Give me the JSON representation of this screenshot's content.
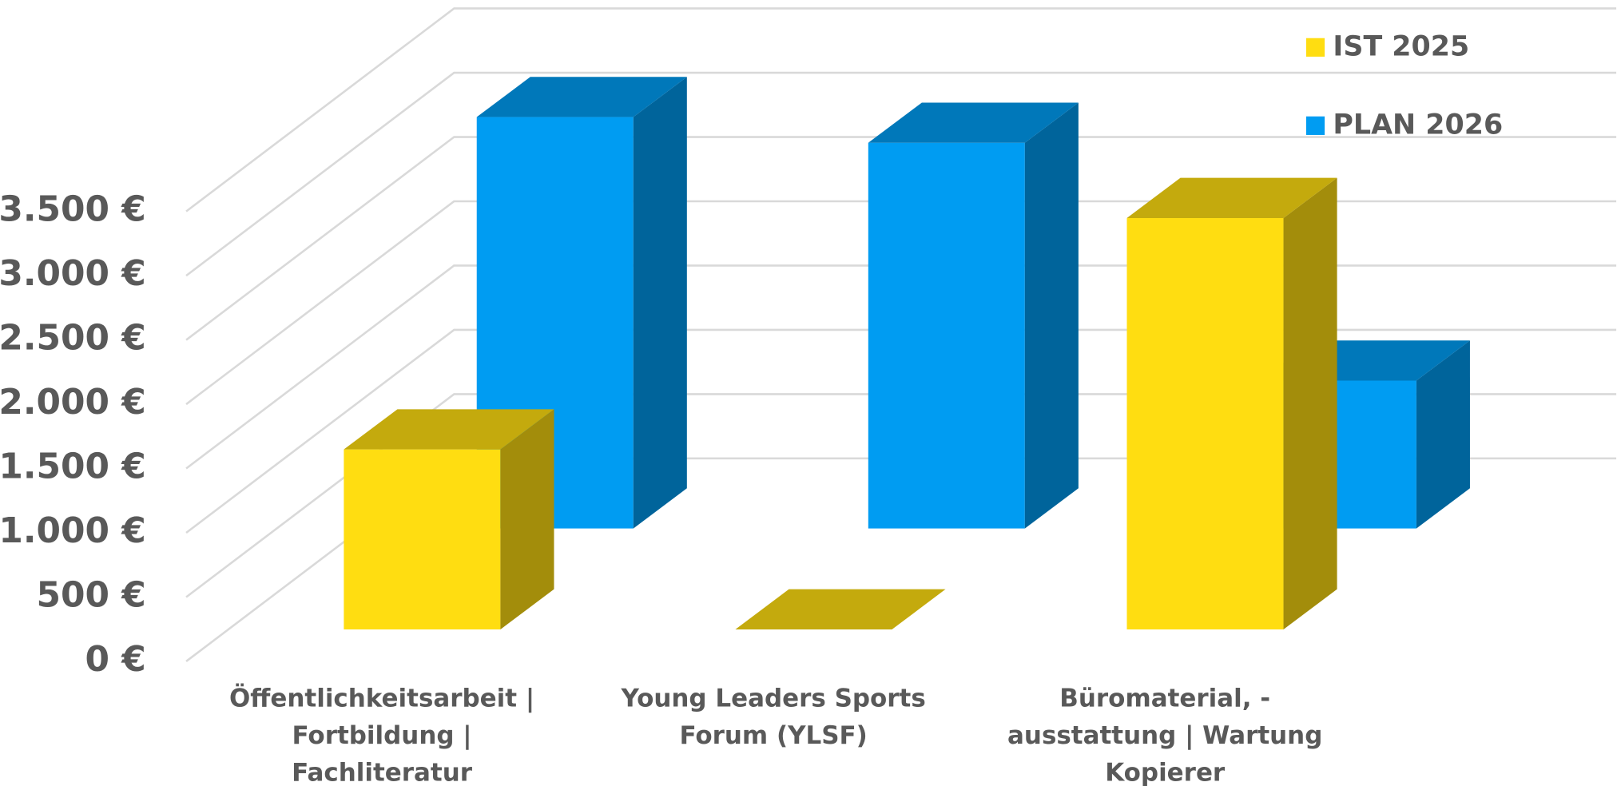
{
  "chart_data": {
    "type": "bar3d",
    "categories": [
      "Öffentlichkeitsarbeit | Fortbildung | Fachliteratur",
      "Young Leaders Sports Forum (YLSF)",
      "Büromaterial, -ausstattung | Wartung Kopierer"
    ],
    "series": [
      {
        "name": "IST 2025",
        "color": "#FFDD11",
        "values": [
          1400,
          0,
          3200
        ]
      },
      {
        "name": "PLAN 2026",
        "color": "#009CF2",
        "values": [
          3200,
          3000,
          1150
        ]
      }
    ],
    "ylim": [
      0,
      3500
    ],
    "yticks": [
      {
        "value": 0,
        "label": "0 €"
      },
      {
        "value": 500,
        "label": "500 €"
      },
      {
        "value": 1000,
        "label": "1.000 €"
      },
      {
        "value": 1500,
        "label": "1.500 €"
      },
      {
        "value": 2000,
        "label": "2.000 €"
      },
      {
        "value": 2500,
        "label": "2.500 €"
      },
      {
        "value": 3000,
        "label": "3.000 €"
      },
      {
        "value": 3500,
        "label": "3.500 €"
      }
    ],
    "grid": true,
    "legend": "top-right"
  }
}
